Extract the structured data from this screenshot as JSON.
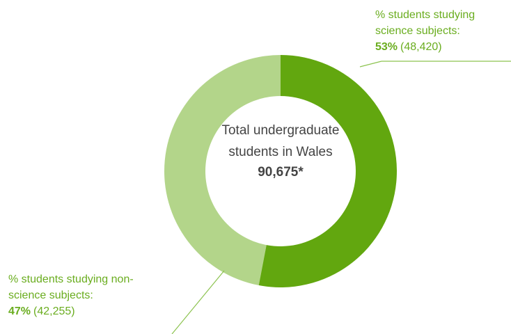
{
  "chart_data": {
    "type": "pie",
    "donut": true,
    "center_label": "Total undergraduate students in Wales",
    "center_value_label": "90,675*",
    "categories": [
      "% students studying science subjects:",
      "% students studying non-science subjects:"
    ],
    "values": [
      53,
      47
    ],
    "value_labels": [
      "53%",
      "47%"
    ],
    "count_labels": [
      "(48,420)",
      "(42,255)"
    ],
    "colors": [
      "#62a70f",
      "#b3d58a"
    ]
  }
}
